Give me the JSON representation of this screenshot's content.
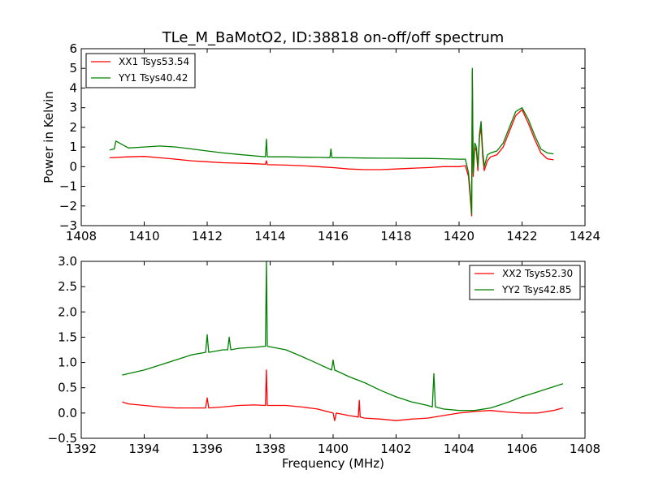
{
  "chart_data": [
    {
      "type": "line",
      "title": "TLe_M_BaMotO2, ID:38818 on-off/off spectrum",
      "xlabel": "",
      "ylabel": "Power in Kelvin",
      "xlim": [
        1408,
        1424
      ],
      "ylim": [
        -3,
        6
      ],
      "xticks": [
        1408,
        1410,
        1412,
        1414,
        1416,
        1418,
        1420,
        1422,
        1424
      ],
      "yticks": [
        -3,
        -2,
        -1,
        0,
        1,
        2,
        3,
        4,
        5,
        6
      ],
      "legend_position": "upper-left",
      "series": [
        {
          "name": "XX1 Tsys53.54",
          "color": "#ff0000",
          "x": [
            1408.9,
            1409.5,
            1410.0,
            1410.5,
            1411.0,
            1411.5,
            1412.0,
            1412.5,
            1413.0,
            1413.5,
            1413.85,
            1413.88,
            1413.91,
            1414.5,
            1415.0,
            1415.5,
            1416.0,
            1416.5,
            1417.0,
            1417.5,
            1418.0,
            1418.5,
            1419.0,
            1419.5,
            1420.0,
            1420.2,
            1420.3,
            1420.35,
            1420.4,
            1420.42,
            1420.45,
            1420.5,
            1420.55,
            1420.6,
            1420.65,
            1420.7,
            1420.75,
            1420.8,
            1420.9,
            1421.0,
            1421.2,
            1421.4,
            1421.6,
            1421.8,
            1422.0,
            1422.2,
            1422.4,
            1422.6,
            1422.8,
            1423.0
          ],
          "y": [
            0.45,
            0.5,
            0.52,
            0.45,
            0.38,
            0.3,
            0.25,
            0.2,
            0.18,
            0.15,
            0.12,
            0.3,
            0.1,
            0.08,
            0.05,
            0.0,
            -0.05,
            -0.12,
            -0.15,
            -0.15,
            -0.12,
            -0.08,
            -0.05,
            0.0,
            0.0,
            0.05,
            -0.5,
            -1.5,
            -2.5,
            4.8,
            -0.5,
            1.0,
            0.8,
            -0.2,
            1.5,
            2.0,
            0.5,
            -0.2,
            0.3,
            0.5,
            0.6,
            1.0,
            1.8,
            2.6,
            2.9,
            2.2,
            1.4,
            0.7,
            0.4,
            0.35
          ]
        },
        {
          "name": "YY1 Tsys40.42",
          "color": "#008000",
          "x": [
            1408.9,
            1409.05,
            1409.1,
            1409.5,
            1410.0,
            1410.5,
            1411.0,
            1411.5,
            1412.0,
            1412.5,
            1413.0,
            1413.5,
            1413.85,
            1413.88,
            1413.91,
            1414.5,
            1415.0,
            1415.5,
            1415.9,
            1415.93,
            1415.96,
            1416.5,
            1417.0,
            1417.5,
            1418.0,
            1418.5,
            1419.0,
            1419.5,
            1420.0,
            1420.2,
            1420.3,
            1420.35,
            1420.4,
            1420.42,
            1420.45,
            1420.5,
            1420.55,
            1420.6,
            1420.65,
            1420.7,
            1420.75,
            1420.8,
            1420.9,
            1421.0,
            1421.2,
            1421.4,
            1421.6,
            1421.8,
            1422.0,
            1422.2,
            1422.4,
            1422.6,
            1422.8,
            1423.0
          ],
          "y": [
            0.85,
            0.9,
            1.3,
            0.95,
            1.0,
            1.05,
            1.0,
            0.9,
            0.8,
            0.7,
            0.62,
            0.55,
            0.5,
            1.4,
            0.5,
            0.5,
            0.48,
            0.47,
            0.46,
            0.9,
            0.46,
            0.45,
            0.44,
            0.43,
            0.43,
            0.42,
            0.42,
            0.4,
            0.38,
            0.38,
            -0.3,
            -1.2,
            -2.4,
            5.0,
            -0.3,
            1.2,
            1.0,
            0.0,
            1.7,
            2.3,
            0.8,
            0.0,
            0.6,
            0.7,
            0.8,
            1.2,
            2.0,
            2.8,
            3.0,
            2.4,
            1.6,
            0.9,
            0.7,
            0.65
          ]
        }
      ]
    },
    {
      "type": "line",
      "title": "",
      "xlabel": "Frequency (MHz)",
      "ylabel": "",
      "xlim": [
        1392,
        1408
      ],
      "ylim": [
        -0.5,
        3.0
      ],
      "xticks": [
        1392,
        1394,
        1396,
        1398,
        1400,
        1402,
        1404,
        1406,
        1408
      ],
      "yticks": [
        -0.5,
        0.0,
        0.5,
        1.0,
        1.5,
        2.0,
        2.5,
        3.0
      ],
      "legend_position": "upper-right",
      "series": [
        {
          "name": "XX2 Tsys52.30",
          "color": "#ff0000",
          "x": [
            1393.3,
            1393.5,
            1394.0,
            1394.5,
            1395.0,
            1395.5,
            1395.95,
            1396.0,
            1396.05,
            1396.5,
            1397.0,
            1397.5,
            1397.85,
            1397.88,
            1397.91,
            1398.5,
            1399.0,
            1399.5,
            1400.0,
            1400.05,
            1400.1,
            1400.5,
            1400.8,
            1400.83,
            1400.86,
            1401.0,
            1401.5,
            1402.0,
            1402.5,
            1403.0,
            1403.5,
            1404.0,
            1404.5,
            1405.0,
            1405.5,
            1406.0,
            1406.5,
            1407.0,
            1407.3
          ],
          "y": [
            0.22,
            0.18,
            0.15,
            0.12,
            0.1,
            0.1,
            0.1,
            0.3,
            0.1,
            0.12,
            0.15,
            0.16,
            0.15,
            0.85,
            0.15,
            0.15,
            0.12,
            0.08,
            0.0,
            -0.15,
            0.0,
            -0.05,
            -0.08,
            0.25,
            -0.08,
            -0.1,
            -0.12,
            -0.15,
            -0.12,
            -0.1,
            -0.05,
            0.0,
            0.03,
            0.05,
            0.02,
            0.0,
            0.0,
            0.05,
            0.1
          ]
        },
        {
          "name": "YY2 Tsys42.85",
          "color": "#008000",
          "x": [
            1393.3,
            1393.5,
            1394.0,
            1394.5,
            1395.0,
            1395.5,
            1395.95,
            1396.0,
            1396.05,
            1396.5,
            1396.65,
            1396.7,
            1396.75,
            1397.0,
            1397.5,
            1397.85,
            1397.88,
            1397.91,
            1398.5,
            1399.0,
            1399.5,
            1399.95,
            1400.0,
            1400.05,
            1400.5,
            1401.0,
            1401.5,
            1402.0,
            1402.5,
            1403.0,
            1403.15,
            1403.2,
            1403.25,
            1403.5,
            1404.0,
            1404.5,
            1405.0,
            1405.5,
            1406.0,
            1406.5,
            1407.0,
            1407.3
          ],
          "y": [
            0.75,
            0.78,
            0.85,
            0.95,
            1.05,
            1.15,
            1.2,
            1.55,
            1.2,
            1.25,
            1.25,
            1.5,
            1.25,
            1.28,
            1.3,
            1.32,
            3.0,
            1.32,
            1.25,
            1.12,
            0.98,
            0.85,
            1.05,
            0.85,
            0.72,
            0.6,
            0.45,
            0.32,
            0.22,
            0.15,
            0.12,
            0.78,
            0.12,
            0.08,
            0.05,
            0.05,
            0.1,
            0.2,
            0.32,
            0.42,
            0.52,
            0.58
          ]
        }
      ]
    }
  ]
}
